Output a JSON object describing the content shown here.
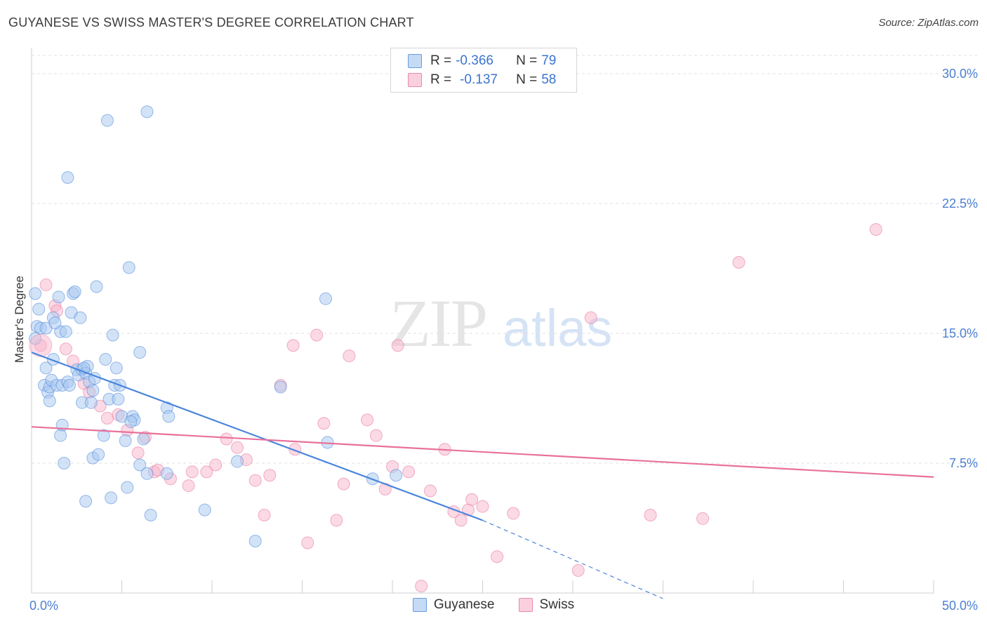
{
  "header": {
    "title": "GUYANESE VS SWISS MASTER'S DEGREE CORRELATION CHART",
    "source": "Source: ZipAtlas.com"
  },
  "watermark": {
    "zip": "ZIP",
    "atlas": "atlas"
  },
  "legend": {
    "rows": [
      {
        "r_label": "R =",
        "r_value": "-0.366",
        "n_label": "N =",
        "n_value": "79",
        "color": "#a8c8f0"
      },
      {
        "r_label": "R =",
        "r_value": "-0.137",
        "n_label": "N =",
        "n_value": "58",
        "color": "#f7b6cb"
      }
    ]
  },
  "bottom_legend": [
    "Guyanese",
    "Swiss"
  ],
  "chart_data": {
    "type": "scatter",
    "title": "GUYANESE VS SWISS MASTER'S DEGREE CORRELATION CHART",
    "ylabel": "Master's Degree",
    "xlim": [
      0,
      50
    ],
    "ylim": [
      0,
      31.5
    ],
    "x_tick_labels": [
      "0.0%",
      "50.0%"
    ],
    "y_ticks": [
      7.5,
      15.0,
      22.5,
      30.0
    ],
    "y_tick_labels": [
      "7.5%",
      "15.0%",
      "22.5%",
      "30.0%"
    ],
    "grid": "dashed horizontal",
    "legend_placement": "top-center",
    "series": [
      {
        "name": "Guyanese",
        "color": "#4a86dc",
        "fill": "#a8c8f0",
        "r": -0.366,
        "n": 79,
        "trend": {
          "x0": 0,
          "y0": 13.9,
          "x1": 25,
          "y1": 4.2,
          "dash_to_x": 35,
          "dash_to_y": 0
        },
        "points": [
          [
            0.2,
            17.3
          ],
          [
            0.3,
            15.4
          ],
          [
            0.5,
            15.3
          ],
          [
            0.2,
            14.7
          ],
          [
            0.4,
            16.4
          ],
          [
            0.8,
            15.3
          ],
          [
            1.2,
            15.9
          ],
          [
            1.5,
            17.1
          ],
          [
            1.6,
            15.1
          ],
          [
            1.3,
            15.6
          ],
          [
            1.9,
            15.1
          ],
          [
            2.2,
            16.2
          ],
          [
            2.3,
            17.3
          ],
          [
            2.4,
            17.4
          ],
          [
            2.7,
            15.9
          ],
          [
            3.6,
            17.7
          ],
          [
            0.7,
            12.0
          ],
          [
            0.8,
            13.0
          ],
          [
            0.9,
            11.6
          ],
          [
            1.0,
            11.9
          ],
          [
            1.0,
            11.1
          ],
          [
            1.1,
            12.3
          ],
          [
            1.4,
            12.0
          ],
          [
            1.7,
            12.0
          ],
          [
            2.0,
            12.2
          ],
          [
            2.1,
            12.0
          ],
          [
            2.5,
            12.9
          ],
          [
            2.6,
            12.6
          ],
          [
            2.8,
            12.9
          ],
          [
            3.1,
            13.1
          ],
          [
            3.0,
            12.7
          ],
          [
            3.2,
            12.2
          ],
          [
            3.5,
            12.4
          ],
          [
            3.4,
            11.7
          ],
          [
            4.1,
            13.5
          ],
          [
            4.3,
            11.2
          ],
          [
            4.5,
            14.9
          ],
          [
            4.6,
            12.0
          ],
          [
            4.8,
            11.2
          ],
          [
            4.7,
            13.0
          ],
          [
            2.8,
            11.0
          ],
          [
            3.3,
            11.0
          ],
          [
            1.7,
            9.7
          ],
          [
            1.6,
            9.1
          ],
          [
            4.0,
            9.1
          ],
          [
            5.0,
            10.2
          ],
          [
            5.2,
            8.8
          ],
          [
            5.6,
            10.2
          ],
          [
            5.7,
            10.0
          ],
          [
            5.5,
            9.9
          ],
          [
            6.2,
            8.9
          ],
          [
            6.0,
            7.4
          ],
          [
            7.5,
            10.7
          ],
          [
            7.6,
            10.2
          ],
          [
            6.4,
            6.9
          ],
          [
            7.5,
            6.9
          ],
          [
            1.8,
            7.5
          ],
          [
            3.4,
            7.8
          ],
          [
            3.7,
            8.0
          ],
          [
            5.3,
            6.1
          ],
          [
            4.4,
            5.5
          ],
          [
            3.0,
            5.3
          ],
          [
            6.6,
            4.5
          ],
          [
            9.6,
            4.8
          ],
          [
            2.0,
            24.0
          ],
          [
            4.2,
            27.3
          ],
          [
            6.4,
            27.8
          ],
          [
            5.4,
            18.8
          ],
          [
            6.0,
            13.9
          ],
          [
            16.3,
            17.0
          ],
          [
            13.8,
            11.9
          ],
          [
            16.4,
            8.7
          ],
          [
            11.4,
            7.6
          ],
          [
            18.9,
            6.6
          ],
          [
            20.2,
            6.8
          ],
          [
            12.4,
            3.0
          ],
          [
            1.2,
            13.5
          ],
          [
            2.9,
            13.0
          ],
          [
            4.9,
            12.0
          ]
        ]
      },
      {
        "name": "Swiss",
        "color": "#e8719a",
        "fill": "#f7b6cb",
        "r": -0.137,
        "n": 58,
        "trend": {
          "x0": 0,
          "y0": 9.6,
          "x1": 50,
          "y1": 6.7
        },
        "points": [
          [
            0.5,
            14.3
          ],
          [
            0.8,
            17.8
          ],
          [
            1.3,
            16.6
          ],
          [
            1.4,
            16.3
          ],
          [
            1.9,
            14.1
          ],
          [
            2.3,
            13.4
          ],
          [
            2.9,
            12.1
          ],
          [
            3.2,
            11.6
          ],
          [
            3.8,
            10.8
          ],
          [
            4.2,
            10.1
          ],
          [
            4.8,
            10.3
          ],
          [
            5.3,
            9.4
          ],
          [
            6.3,
            9.0
          ],
          [
            5.9,
            8.1
          ],
          [
            6.8,
            7.0
          ],
          [
            7.0,
            7.1
          ],
          [
            7.7,
            6.6
          ],
          [
            8.7,
            6.2
          ],
          [
            8.9,
            7.0
          ],
          [
            9.7,
            7.0
          ],
          [
            10.2,
            7.4
          ],
          [
            10.8,
            8.9
          ],
          [
            11.4,
            8.4
          ],
          [
            11.9,
            7.7
          ],
          [
            12.4,
            6.5
          ],
          [
            12.9,
            4.5
          ],
          [
            13.2,
            6.8
          ],
          [
            13.8,
            12.0
          ],
          [
            14.6,
            8.3
          ],
          [
            14.5,
            14.3
          ],
          [
            15.3,
            2.9
          ],
          [
            15.8,
            14.9
          ],
          [
            16.2,
            9.8
          ],
          [
            16.9,
            4.2
          ],
          [
            17.3,
            6.3
          ],
          [
            17.6,
            13.7
          ],
          [
            18.6,
            10.0
          ],
          [
            19.1,
            9.1
          ],
          [
            19.6,
            6.0
          ],
          [
            20.0,
            7.3
          ],
          [
            20.3,
            14.3
          ],
          [
            20.9,
            7.0
          ],
          [
            21.6,
            0.4
          ],
          [
            22.1,
            5.9
          ],
          [
            22.9,
            8.3
          ],
          [
            23.4,
            4.7
          ],
          [
            23.8,
            4.2
          ],
          [
            24.2,
            4.8
          ],
          [
            24.4,
            5.4
          ],
          [
            25.0,
            5.0
          ],
          [
            25.8,
            2.1
          ],
          [
            26.7,
            4.6
          ],
          [
            30.3,
            1.3
          ],
          [
            31.0,
            15.9
          ],
          [
            34.3,
            4.5
          ],
          [
            37.2,
            4.3
          ],
          [
            39.2,
            19.1
          ],
          [
            46.8,
            21.0
          ]
        ]
      }
    ]
  }
}
